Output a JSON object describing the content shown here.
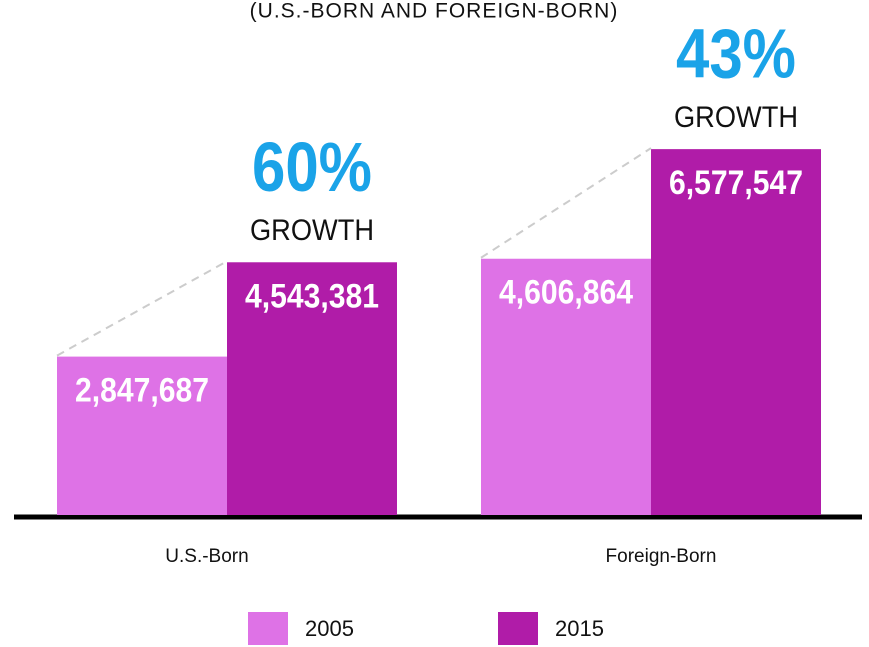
{
  "chart_data": {
    "type": "bar",
    "subtitle": "(U.S.-BORN AND FOREIGN-BORN)",
    "categories": [
      "U.S.-Born",
      "Foreign-Born"
    ],
    "series": [
      {
        "name": "2005",
        "color": "#de72e6",
        "values": [
          2847687,
          4606864
        ],
        "value_labels": [
          "2,847,687",
          "4,606,864"
        ]
      },
      {
        "name": "2015",
        "color": "#b01ca8",
        "values": [
          4543381,
          6577547
        ],
        "value_labels": [
          "4,543,381",
          "6,577,547"
        ]
      }
    ],
    "annotations": [
      {
        "label": "60%",
        "note": "GROWTH"
      },
      {
        "label": "43%",
        "note": "GROWTH"
      }
    ],
    "annotation_color": "#1aa3e8",
    "ylim": [
      0,
      8000000
    ],
    "legend": "bottom"
  }
}
